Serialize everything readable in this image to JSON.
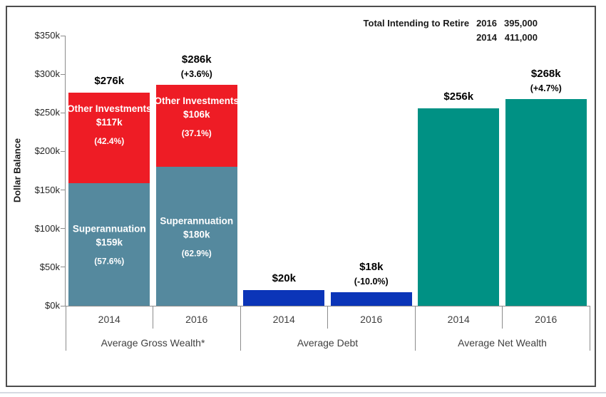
{
  "header": {
    "title": "Total Intending to Retire",
    "entries": [
      {
        "year": "2016",
        "value": "395,000"
      },
      {
        "year": "2014",
        "value": "411,000"
      }
    ]
  },
  "chart_data": {
    "type": "bar",
    "stacked": true,
    "ylabel": "Dollar Balance",
    "ylim": [
      0,
      350000
    ],
    "y_ticks": [
      {
        "label": "$350k",
        "value": 350000
      },
      {
        "label": "$300k",
        "value": 300000
      },
      {
        "label": "$250k",
        "value": 250000
      },
      {
        "label": "$200k",
        "value": 200000
      },
      {
        "label": "$150k",
        "value": 150000
      },
      {
        "label": "$100k",
        "value": 100000
      },
      {
        "label": "$50k",
        "value": 50000
      },
      {
        "label": "$0k",
        "value": 0
      }
    ],
    "legend": "none",
    "grid": false,
    "groups": [
      {
        "label": "Average Gross Wealth*",
        "bars": [
          {
            "category": "2014",
            "total": 276000,
            "total_label": "$276k",
            "change_label": null,
            "segments": [
              {
                "name": "Superannuation",
                "value": 159000,
                "value_label": "$159k",
                "pct_label": "(57.6%)",
                "color_key": "steel"
              },
              {
                "name": "Other Investments",
                "value": 117000,
                "value_label": "$117k",
                "pct_label": "(42.4%)",
                "color_key": "red"
              }
            ]
          },
          {
            "category": "2016",
            "total": 286000,
            "total_label": "$286k",
            "change_label": "(+3.6%)",
            "segments": [
              {
                "name": "Superannuation",
                "value": 180000,
                "value_label": "$180k",
                "pct_label": "(62.9%)",
                "color_key": "steel"
              },
              {
                "name": "Other Investments",
                "value": 106000,
                "value_label": "$106k",
                "pct_label": "(37.1%)",
                "color_key": "red"
              }
            ]
          }
        ]
      },
      {
        "label": "Average Debt",
        "bars": [
          {
            "category": "2014",
            "total": 20000,
            "total_label": "$20k",
            "change_label": null,
            "segments": [
              {
                "name": null,
                "value": 20000,
                "value_label": null,
                "pct_label": null,
                "color_key": "blue"
              }
            ]
          },
          {
            "category": "2016",
            "total": 18000,
            "total_label": "$18k",
            "change_label": "(-10.0%)",
            "segments": [
              {
                "name": null,
                "value": 18000,
                "value_label": null,
                "pct_label": null,
                "color_key": "blue"
              }
            ]
          }
        ]
      },
      {
        "label": "Average Net Wealth",
        "bars": [
          {
            "category": "2014",
            "total": 256000,
            "total_label": "$256k",
            "change_label": null,
            "segments": [
              {
                "name": null,
                "value": 256000,
                "value_label": null,
                "pct_label": null,
                "color_key": "teal"
              }
            ]
          },
          {
            "category": "2016",
            "total": 268000,
            "total_label": "$268k",
            "change_label": "(+4.7%)",
            "segments": [
              {
                "name": null,
                "value": 268000,
                "value_label": null,
                "pct_label": null,
                "color_key": "teal"
              }
            ]
          }
        ]
      }
    ]
  },
  "colors": {
    "red": "#ee1c25",
    "steel": "#55899e",
    "blue": "#0b35b8",
    "teal": "#009184",
    "axis": "#8c8c8c",
    "tick_text": "#262626",
    "category_text": "#404040",
    "label_text": "#000000",
    "frame_border": "#4d4d4d"
  }
}
